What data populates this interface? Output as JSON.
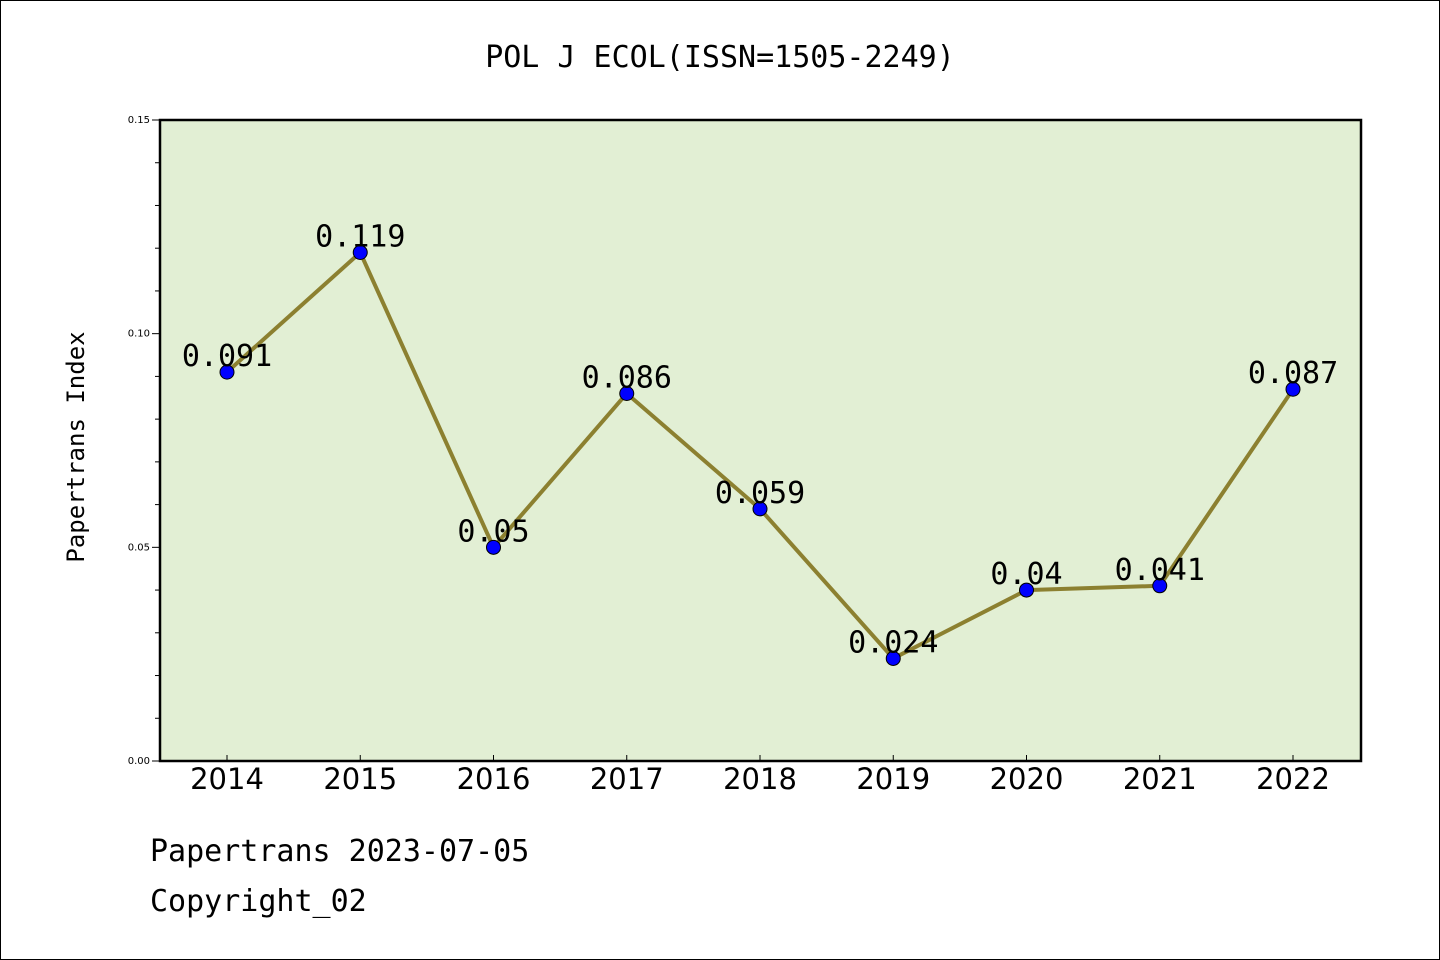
{
  "chart_data": {
    "type": "line",
    "title": "POL J ECOL(ISSN=1505-2249)",
    "ylabel": "Papertrans Index",
    "xlabel": "",
    "x": [
      "2014",
      "2015",
      "2016",
      "2017",
      "2018",
      "2019",
      "2020",
      "2021",
      "2022"
    ],
    "values": [
      0.091,
      0.119,
      0.05,
      0.086,
      0.059,
      0.024,
      0.04,
      0.041,
      0.087
    ],
    "data_labels": [
      "0.091",
      "0.119",
      "0.05",
      "0.086",
      "0.059",
      "0.024",
      "0.04",
      "0.041",
      "0.087"
    ],
    "ylim": [
      0,
      0.15
    ],
    "yticks": [
      "0.00",
      "0.05",
      "0.10",
      "0.15"
    ],
    "grid": false,
    "colors": {
      "plot_background": "#e2efd4",
      "line": "#8c8030",
      "marker": "#0000ff"
    }
  },
  "footer": {
    "date": "Papertrans 2023-07-05",
    "copyright": "Copyright_02"
  }
}
